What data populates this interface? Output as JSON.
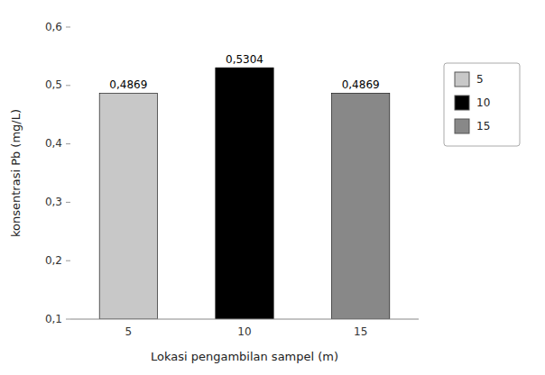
{
  "chart_data": {
    "type": "bar",
    "categories": [
      "5",
      "10",
      "15"
    ],
    "values": [
      0.4869,
      0.5304,
      0.4869
    ],
    "value_labels": [
      "0,4869",
      "0,5304",
      "0,4869"
    ],
    "data_labels": true,
    "colors": [
      "#c8c8c8",
      "#000000",
      "#888888"
    ],
    "xlabel": "Lokasi pengambilan sampel (m)",
    "ylabel": "konsentrasi Pb (mg/L)",
    "ylim": [
      0.1,
      0.6
    ],
    "yticks": [
      {
        "value": 0.1,
        "label": "0,1"
      },
      {
        "value": 0.2,
        "label": "0,2"
      },
      {
        "value": 0.3,
        "label": "0,3"
      },
      {
        "value": 0.4,
        "label": "0,4"
      },
      {
        "value": 0.5,
        "label": "0,5"
      },
      {
        "value": 0.6,
        "label": "0,6"
      }
    ],
    "grid": false,
    "legend": "right"
  }
}
